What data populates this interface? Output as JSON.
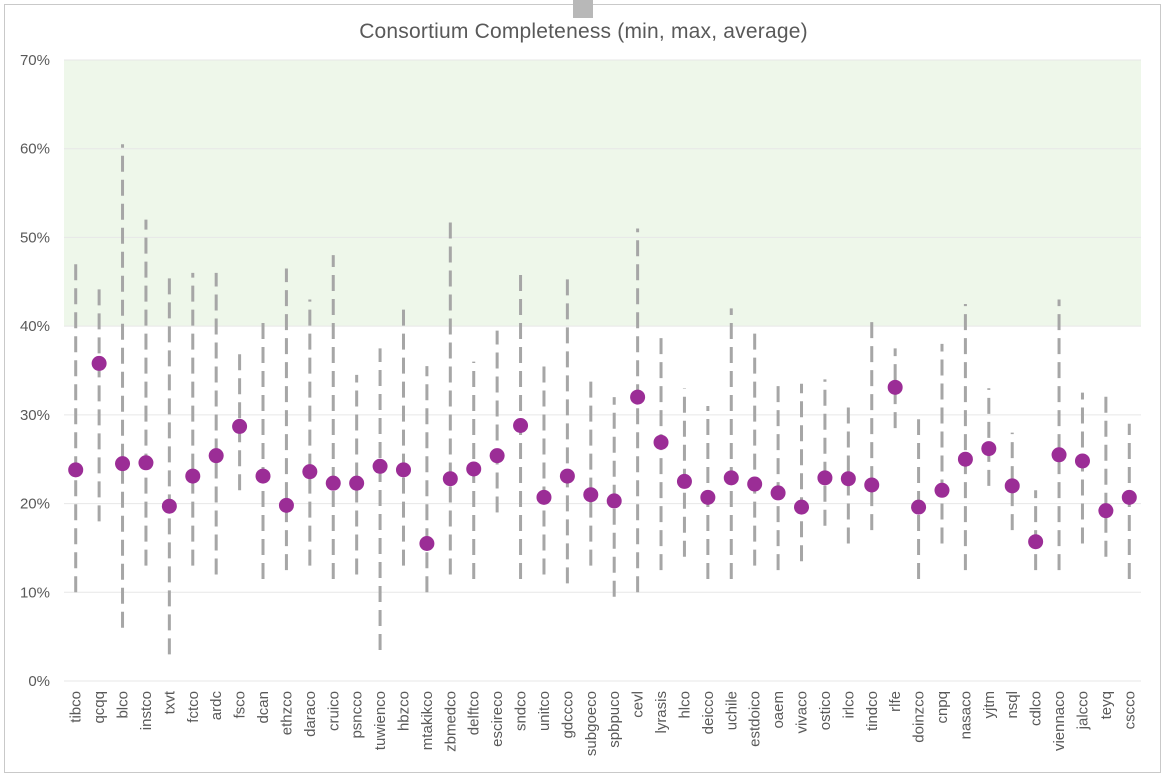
{
  "chart_data": {
    "type": "error-range-dot",
    "title": "Consortium Completeness (min, max, average)",
    "xlabel": "",
    "ylabel": "",
    "ylim": [
      0,
      70
    ],
    "y_tick_labels": [
      "0%",
      "10%",
      "20%",
      "30%",
      "40%",
      "50%",
      "60%",
      "70%"
    ],
    "y_ticks": [
      0,
      10,
      20,
      30,
      40,
      50,
      60,
      70
    ],
    "highlight_band": {
      "from": 40,
      "to": 70,
      "color": "#eef7ea"
    },
    "grid": true,
    "categories": [
      "tibco",
      "qcqq",
      "blco",
      "instco",
      "txvt",
      "fctco",
      "ardc",
      "fsco",
      "dcan",
      "ethzco",
      "daraco",
      "cruico",
      "psncco",
      "tuwienco",
      "hbzco",
      "mtakikco",
      "zbmedco",
      "delftco",
      "escireco",
      "sndco",
      "unitco",
      "gdccco",
      "subgoeco",
      "spbpuco",
      "cevl",
      "lyrasis",
      "hlco",
      "deicco",
      "uchile",
      "estdoico",
      "oaem",
      "vivaco",
      "ostico",
      "irlco",
      "tindco",
      "rlfe",
      "doinzco",
      "cnpq",
      "nasaco",
      "yjtm",
      "nsql",
      "cdlco",
      "viennaco",
      "jalcco",
      "teyq",
      "cscco"
    ],
    "series": [
      {
        "name": "min",
        "values": [
          10,
          18,
          6,
          13,
          3,
          13,
          12,
          21.5,
          11.5,
          12.5,
          13,
          11.5,
          12,
          3.5,
          13,
          10,
          12,
          11.5,
          19,
          11.5,
          12,
          11,
          13,
          9.5,
          10,
          12.5,
          14,
          11.5,
          11.5,
          13,
          12.5,
          13.5,
          17.5,
          15.5,
          17,
          28.5,
          11.5,
          15.5,
          12.5,
          22,
          17,
          12.5,
          12.5,
          15.5,
          14,
          11.5
        ]
      },
      {
        "name": "max",
        "values": [
          47.5,
          44.5,
          60.5,
          52,
          46,
          46,
          46,
          37.5,
          41,
          46.5,
          43,
          48,
          34.5,
          37.5,
          42.5,
          35.5,
          52.5,
          36,
          39.5,
          46.5,
          35.5,
          45.5,
          34.5,
          32,
          51,
          39.5,
          33,
          31,
          42,
          39.5,
          34,
          33.5,
          34,
          31.5,
          40.5,
          37.5,
          29.5,
          38,
          42.5,
          33,
          28,
          21.5,
          43,
          32.5,
          32.5,
          29
        ]
      },
      {
        "name": "average",
        "values": [
          23.8,
          35.8,
          24.5,
          24.6,
          19.7,
          23.1,
          25.4,
          28.7,
          23.1,
          19.8,
          23.6,
          22.3,
          22.3,
          24.2,
          23.8,
          15.5,
          22.8,
          23.9,
          25.4,
          28.8,
          20.7,
          23.1,
          21,
          20.3,
          32,
          26.9,
          22.5,
          20.7,
          22.9,
          22.2,
          21.2,
          19.6,
          22.9,
          22.8,
          22.1,
          33.1,
          19.6,
          21.5,
          25,
          26.2,
          22,
          15.7,
          25.5,
          24.8,
          19.2,
          20.7
        ]
      }
    ],
    "colors": {
      "marker": "#9b2d96",
      "range": "#a6a6a6",
      "grid": "#e7e7e7",
      "band": "#eef7ea",
      "text": "#595959"
    }
  }
}
